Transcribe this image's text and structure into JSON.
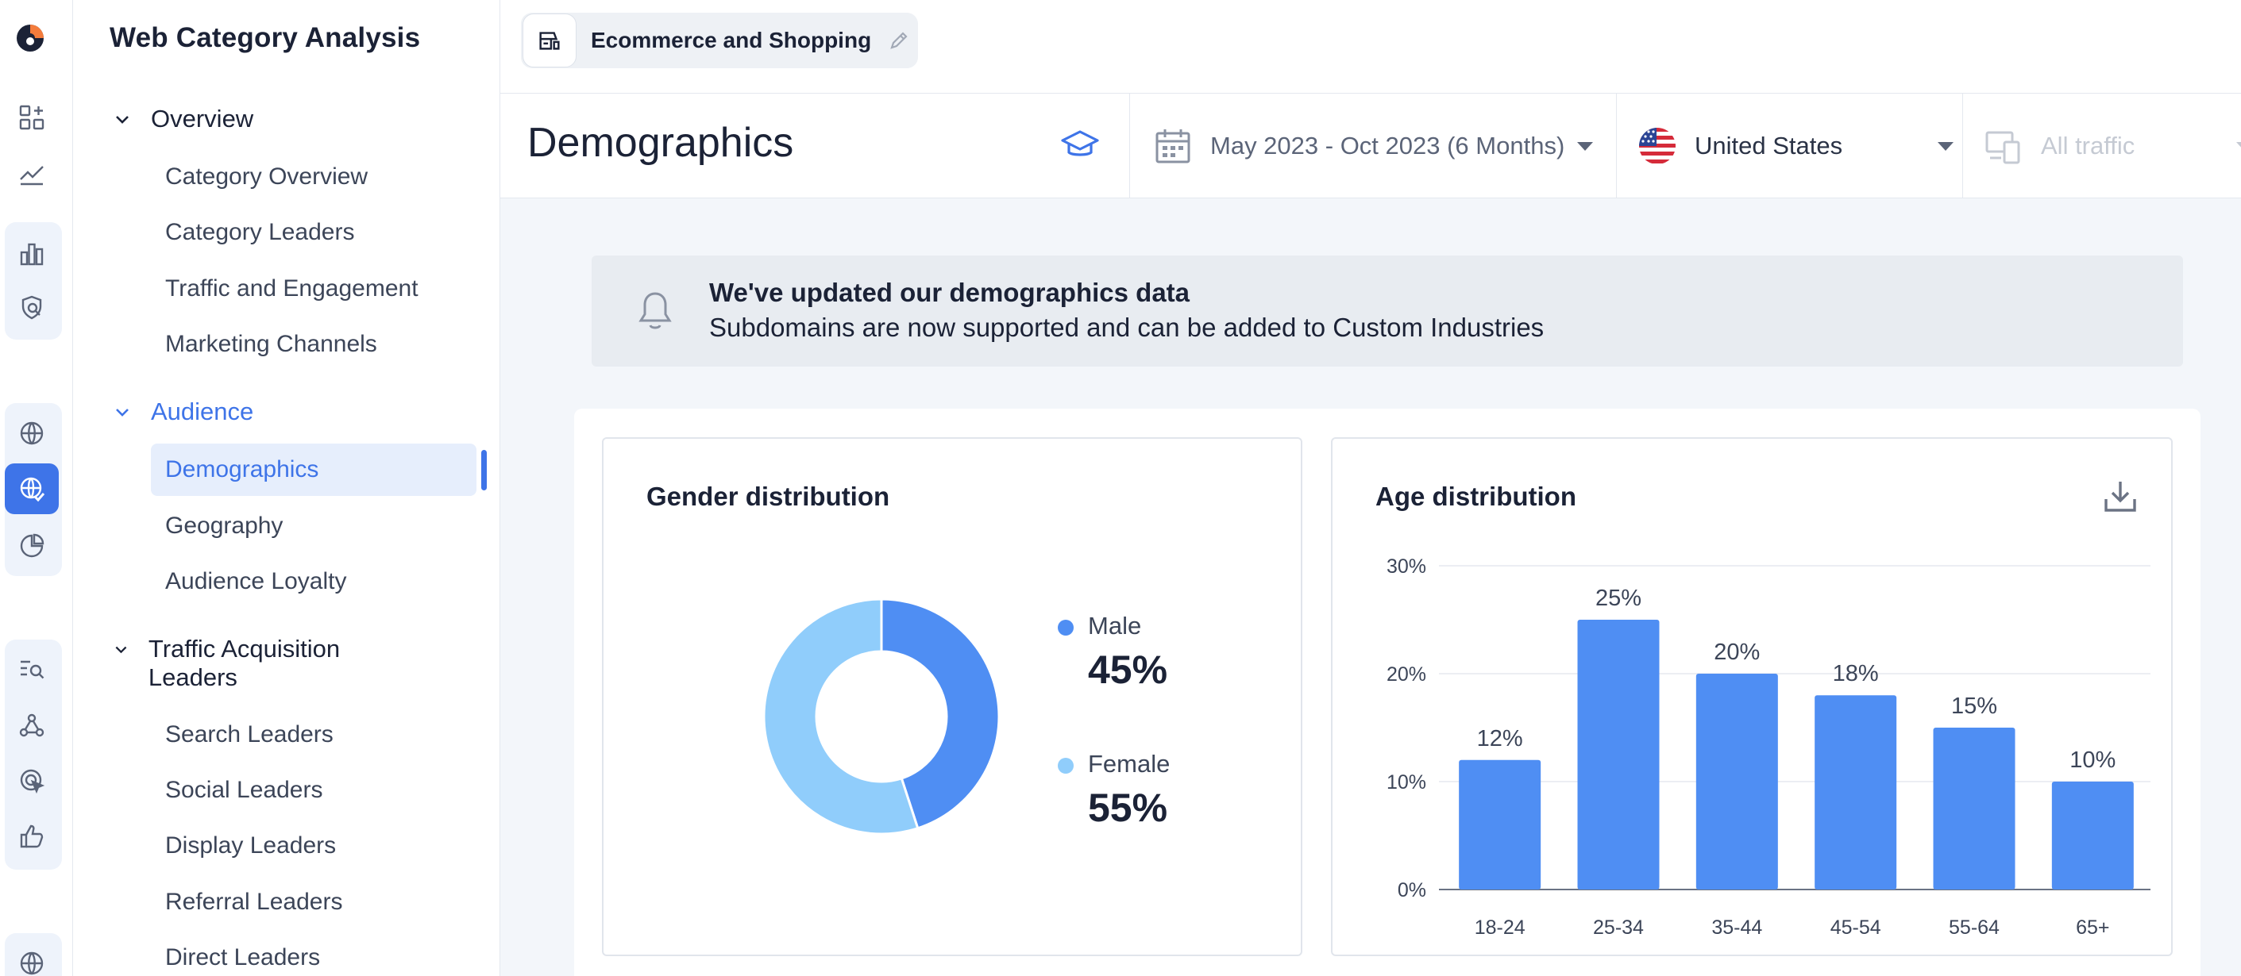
{
  "nav": {
    "title": "Web Category Analysis",
    "sections": [
      {
        "label": "Overview",
        "items": [
          "Category Overview",
          "Category Leaders",
          "Traffic and Engagement",
          "Marketing Channels"
        ]
      },
      {
        "label": "Audience",
        "items": [
          "Demographics",
          "Geography",
          "Audience Loyalty"
        ]
      },
      {
        "label": "Traffic Acquisition Leaders",
        "items": [
          "Search Leaders",
          "Social Leaders",
          "Display Leaders",
          "Referral Leaders",
          "Direct Leaders"
        ]
      }
    ],
    "active_item": "Demographics"
  },
  "header": {
    "category": "Ecommerce and Shopping"
  },
  "page": {
    "title": "Demographics",
    "date_range": "May 2023 - Oct 2023 (6 Months)",
    "country": "United States",
    "traffic": "All traffic"
  },
  "banner": {
    "title": "We've updated our demographics data",
    "text": "Subdomains are now supported and can be added to Custom Industries"
  },
  "gender": {
    "title": "Gender distribution"
  },
  "age": {
    "title": "Age distribution"
  },
  "colors": {
    "accent": "#3e74e8",
    "male": "#4f8ef3",
    "female": "#90cdfb",
    "bar": "#4f8ef3"
  },
  "chart_data": [
    {
      "type": "pie",
      "title": "Gender distribution",
      "labels": [
        "Male",
        "Female"
      ],
      "values": [
        45,
        55
      ],
      "value_labels": [
        "45%",
        "55%"
      ],
      "donut": true,
      "legend": "right"
    },
    {
      "type": "bar",
      "title": "Age distribution",
      "categories": [
        "18-24",
        "25-34",
        "35-44",
        "45-54",
        "55-64",
        "65+"
      ],
      "values": [
        12,
        25,
        20,
        18,
        15,
        10
      ],
      "value_labels": [
        "12%",
        "25%",
        "20%",
        "18%",
        "15%",
        "10%"
      ],
      "yticks": [
        "0%",
        "10%",
        "20%",
        "30%"
      ],
      "ylim": [
        0,
        30
      ],
      "grid": true
    }
  ]
}
